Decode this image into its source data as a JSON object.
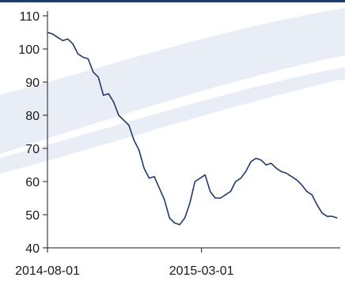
{
  "chart_data": {
    "type": "line",
    "title": "",
    "xlabel": "",
    "ylabel": "",
    "ylim": [
      40,
      110
    ],
    "yticks": [
      40,
      50,
      60,
      70,
      80,
      90,
      100,
      110
    ],
    "xticks": [
      "2014-08-01",
      "2015-03-01"
    ],
    "xlim": [
      "2014-08-01",
      "2015-09-08"
    ],
    "grid": false,
    "colors": {
      "line": "#1f3a6b",
      "axis": "#1a1a1a",
      "frame": "#1f3a6b",
      "background": "#ffffff",
      "swoosh": "#e9eef6"
    },
    "series": [
      {
        "x": [
          "2014-08-01",
          "2014-08-08",
          "2014-08-15",
          "2014-08-22",
          "2014-08-29",
          "2014-09-05",
          "2014-09-12",
          "2014-09-19",
          "2014-09-26",
          "2014-10-03",
          "2014-10-10",
          "2014-10-17",
          "2014-10-24",
          "2014-10-31",
          "2014-11-07",
          "2014-11-14",
          "2014-11-21",
          "2014-11-28",
          "2014-12-05",
          "2014-12-12",
          "2014-12-19",
          "2014-12-26",
          "2015-01-02",
          "2015-01-09",
          "2015-01-16",
          "2015-01-23",
          "2015-01-30",
          "2015-02-06",
          "2015-02-13",
          "2015-02-20",
          "2015-02-27",
          "2015-03-06",
          "2015-03-13",
          "2015-03-20",
          "2015-03-27",
          "2015-04-03",
          "2015-04-10",
          "2015-04-17",
          "2015-04-24",
          "2015-05-01",
          "2015-05-08",
          "2015-05-15",
          "2015-05-22",
          "2015-05-29",
          "2015-06-05",
          "2015-06-12",
          "2015-06-19",
          "2015-06-26",
          "2015-07-03",
          "2015-07-10",
          "2015-07-17",
          "2015-07-24",
          "2015-07-31",
          "2015-08-07",
          "2015-08-14",
          "2015-08-21",
          "2015-08-28",
          "2015-09-04"
        ],
        "values": [
          105,
          104.5,
          103.5,
          102.5,
          103,
          101.5,
          98.5,
          97.5,
          97,
          93,
          91.5,
          86,
          86.5,
          84,
          80,
          78.5,
          77,
          72.5,
          69.5,
          64,
          61,
          61.5,
          58,
          54.5,
          49,
          47.5,
          47,
          49,
          53.5,
          60,
          61,
          62,
          57,
          55,
          55,
          56,
          57,
          60,
          61,
          63,
          66,
          67,
          66.5,
          65,
          65.5,
          64,
          63,
          62.5,
          61.5,
          60.5,
          59,
          57,
          56,
          53,
          50.5,
          49.5,
          49.5,
          49
        ]
      }
    ]
  }
}
